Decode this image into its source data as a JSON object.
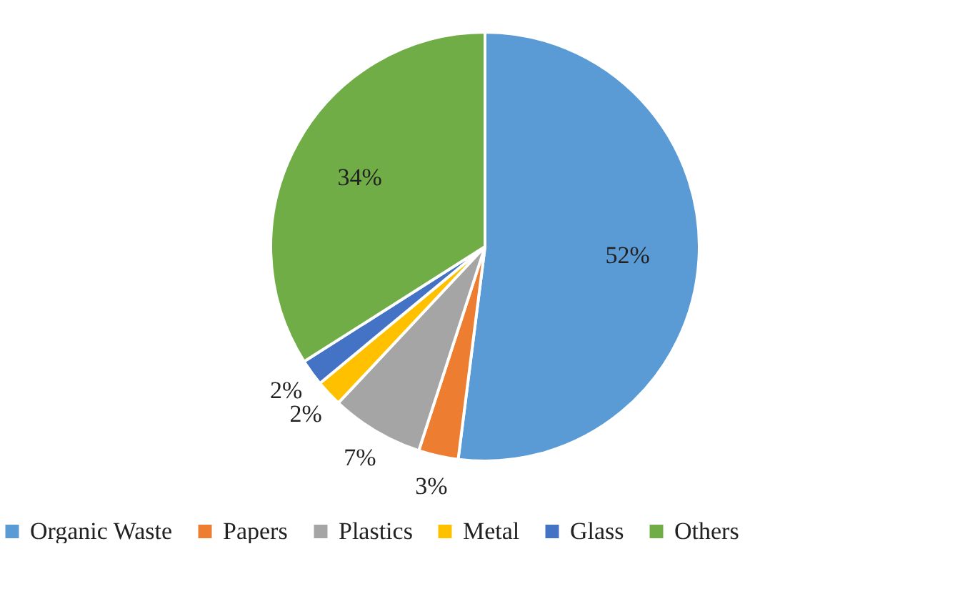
{
  "chart_data": {
    "type": "pie",
    "categories": [
      "Organic Waste",
      "Papers",
      "Plastics",
      "Metal",
      "Glass",
      "Others"
    ],
    "values": [
      52,
      3,
      7,
      2,
      2,
      34
    ],
    "colors": [
      "#5b9bd5",
      "#ed7d31",
      "#a5a5a5",
      "#ffc000",
      "#4472c4",
      "#70ad47"
    ],
    "value_labels": [
      "52%",
      "3%",
      "7%",
      "2%",
      "2%",
      "34%"
    ],
    "legend": "bottom"
  }
}
